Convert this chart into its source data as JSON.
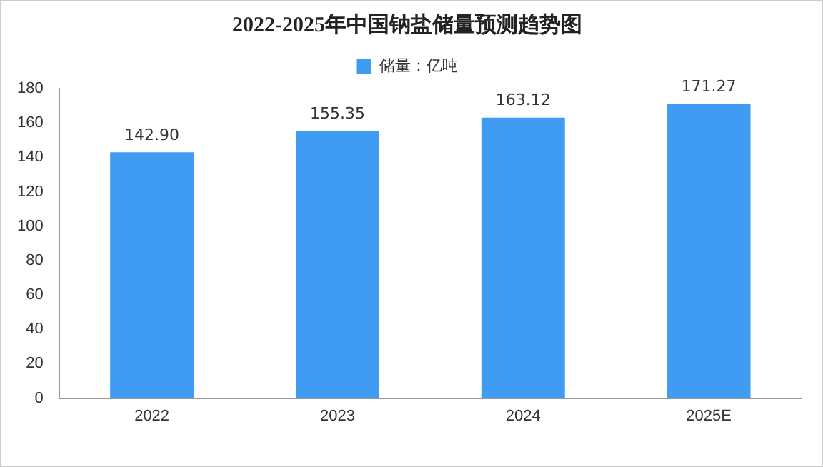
{
  "chart_data": {
    "type": "bar",
    "title": "2022-2025年中国钠盐储量预测趋势图",
    "categories": [
      "2022",
      "2023",
      "2024",
      "2025E"
    ],
    "series": [
      {
        "name": "储量：亿吨",
        "color": "#3f9cf2",
        "values": [
          142.9,
          155.35,
          163.12,
          171.27
        ]
      }
    ],
    "value_labels": [
      "142.90",
      "155.35",
      "163.12",
      "171.27"
    ],
    "ylim": [
      0,
      180
    ],
    "yticks": [
      0,
      20,
      40,
      60,
      80,
      100,
      120,
      140,
      160,
      180
    ],
    "grid": false,
    "legend": "top"
  }
}
